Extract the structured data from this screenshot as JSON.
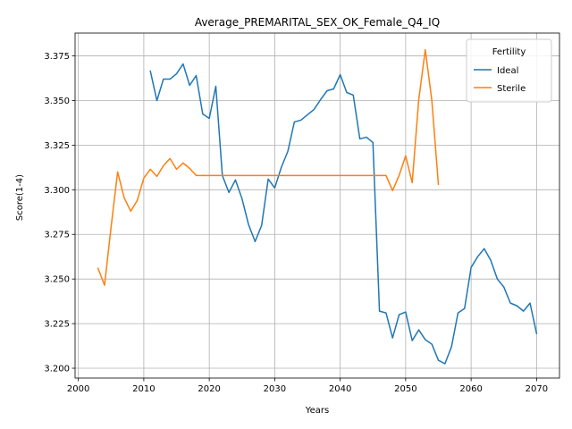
{
  "chart_data": {
    "type": "line",
    "title": "Average_PREMARITAL_SEX_OK_Female_Q4_IQ",
    "xlabel": "Years",
    "ylabel": "Score(1-4)",
    "xlim": [
      1999.5,
      2073.5
    ],
    "ylim": [
      3.1945,
      3.3878
    ],
    "x_ticks": [
      2000,
      2010,
      2020,
      2030,
      2040,
      2050,
      2060,
      2070
    ],
    "y_ticks": [
      3.2,
      3.225,
      3.25,
      3.275,
      3.3,
      3.325,
      3.35,
      3.375
    ],
    "grid": true,
    "legend": {
      "title": "Fertility",
      "placement": "top-right"
    },
    "series": [
      {
        "name": "Ideal",
        "color": "#1f77b4",
        "x": [
          2011,
          2012,
          2013,
          2014,
          2015,
          2016,
          2017,
          2018,
          2019,
          2020,
          2021,
          2022,
          2023,
          2024,
          2025,
          2026,
          2027,
          2028,
          2029,
          2030,
          2031,
          2032,
          2033,
          2034,
          2035,
          2036,
          2037,
          2038,
          2039,
          2040,
          2041,
          2042,
          2043,
          2044,
          2045,
          2046,
          2047,
          2048,
          2049,
          2050,
          2051,
          2052,
          2053,
          2054,
          2055,
          2056,
          2057,
          2058,
          2059,
          2060,
          2061,
          2062,
          2063,
          2064,
          2065,
          2066,
          2067,
          2068,
          2069,
          2070
        ],
        "y": [
          3.3665,
          3.35,
          3.362,
          3.362,
          3.365,
          3.3705,
          3.3585,
          3.364,
          3.3425,
          3.34,
          3.358,
          3.308,
          3.2985,
          3.3055,
          3.295,
          3.2805,
          3.271,
          3.28,
          3.306,
          3.301,
          3.3125,
          3.3215,
          3.338,
          3.339,
          3.342,
          3.345,
          3.3505,
          3.3555,
          3.3565,
          3.3645,
          3.3545,
          3.353,
          3.3285,
          3.3295,
          3.3265,
          3.232,
          3.231,
          3.217,
          3.23,
          3.2315,
          3.2155,
          3.2215,
          3.216,
          3.2135,
          3.2045,
          3.2025,
          3.212,
          3.231,
          3.2335,
          3.2565,
          3.2625,
          3.267,
          3.2605,
          3.25,
          3.2455,
          3.2365,
          3.235,
          3.232,
          3.2365,
          3.2195
        ]
      },
      {
        "name": "Sterile",
        "color": "#ff7f0e",
        "x": [
          2003,
          2004,
          2005,
          2006,
          2007,
          2008,
          2009,
          2010,
          2011,
          2012,
          2013,
          2014,
          2015,
          2016,
          2017,
          2018,
          2019,
          2020,
          2021,
          2022,
          2023,
          2024,
          2025,
          2026,
          2027,
          2028,
          2029,
          2030,
          2031,
          2032,
          2033,
          2034,
          2035,
          2036,
          2037,
          2038,
          2039,
          2040,
          2041,
          2042,
          2043,
          2044,
          2045,
          2046,
          2047,
          2048,
          2049,
          2050,
          2051,
          2052,
          2053,
          2054,
          2055
        ],
        "y": [
          3.256,
          3.2465,
          3.279,
          3.31,
          3.2955,
          3.288,
          3.294,
          3.3065,
          3.3115,
          3.3075,
          3.3135,
          3.3175,
          3.3115,
          3.315,
          3.312,
          3.308,
          3.308,
          3.308,
          3.308,
          3.308,
          3.308,
          3.308,
          3.308,
          3.308,
          3.308,
          3.308,
          3.308,
          3.308,
          3.308,
          3.308,
          3.308,
          3.308,
          3.308,
          3.308,
          3.308,
          3.308,
          3.308,
          3.308,
          3.308,
          3.308,
          3.308,
          3.308,
          3.308,
          3.308,
          3.308,
          3.2995,
          3.308,
          3.319,
          3.304,
          3.3505,
          3.3785,
          3.35,
          3.303
        ]
      }
    ]
  }
}
